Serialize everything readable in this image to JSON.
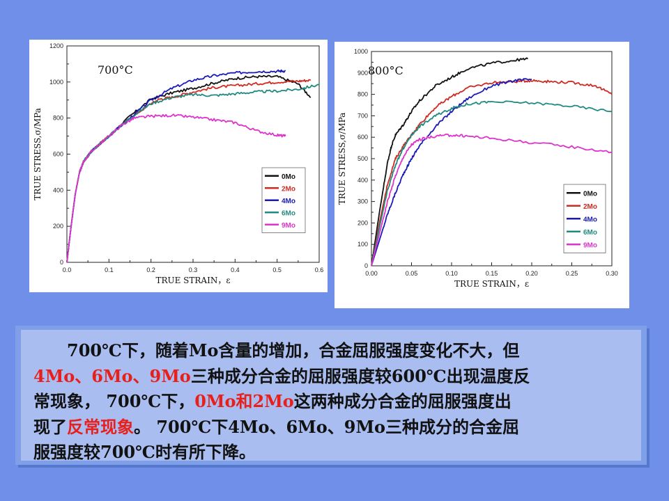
{
  "charts_style": {
    "axis_color": "#222222",
    "frame_color": "#888888"
  },
  "chart_data": [
    {
      "type": "line",
      "temperature_label": "700°C",
      "xlabel": "TRUE STRAIN，ε",
      "ylabel": "TRUE STRESS,σ/MPa",
      "xlim": [
        0,
        0.6
      ],
      "ylim": [
        0,
        1200
      ],
      "x_ticks": [
        0.0,
        0.1,
        0.2,
        0.3,
        0.4,
        0.5,
        0.6
      ],
      "x_tick_labels": [
        "0.0",
        "0.1",
        "0.2",
        "0.3",
        "0.4",
        "0.5",
        "0.6"
      ],
      "y_ticks": [
        0,
        200,
        400,
        600,
        800,
        1000,
        1200
      ],
      "y_tick_labels": [
        "0",
        "200",
        "400",
        "600",
        "800",
        "1000",
        "1200"
      ],
      "legend_position": "right-bottom",
      "series": [
        {
          "name": "0Mo",
          "color": "#111111",
          "x": [
            0,
            0.01,
            0.02,
            0.03,
            0.04,
            0.06,
            0.1,
            0.15,
            0.2,
            0.25,
            0.3,
            0.35,
            0.4,
            0.45,
            0.5,
            0.55,
            0.58
          ],
          "y": [
            0,
            200,
            380,
            500,
            560,
            620,
            700,
            810,
            905,
            940,
            965,
            995,
            1020,
            1030,
            1030,
            990,
            915
          ]
        },
        {
          "name": "2Mo",
          "color": "#d02a22",
          "x": [
            0,
            0.01,
            0.02,
            0.03,
            0.04,
            0.06,
            0.1,
            0.15,
            0.2,
            0.22,
            0.25,
            0.3,
            0.35,
            0.4,
            0.45,
            0.5,
            0.55,
            0.58
          ],
          "y": [
            0,
            200,
            380,
            500,
            560,
            620,
            700,
            800,
            880,
            905,
            915,
            945,
            970,
            980,
            990,
            1000,
            1005,
            1010
          ]
        },
        {
          "name": "4Mo",
          "color": "#1a1ab8",
          "x": [
            0,
            0.01,
            0.02,
            0.03,
            0.04,
            0.06,
            0.1,
            0.15,
            0.2,
            0.25,
            0.3,
            0.35,
            0.4,
            0.45,
            0.5,
            0.52
          ],
          "y": [
            0,
            200,
            380,
            500,
            560,
            620,
            700,
            800,
            900,
            965,
            1010,
            1035,
            1050,
            1058,
            1060,
            1062
          ]
        },
        {
          "name": "6Mo",
          "color": "#1f8a80",
          "x": [
            0,
            0.01,
            0.02,
            0.03,
            0.04,
            0.06,
            0.1,
            0.15,
            0.2,
            0.25,
            0.3,
            0.35,
            0.4,
            0.45,
            0.5,
            0.55,
            0.6
          ],
          "y": [
            0,
            200,
            380,
            500,
            560,
            620,
            700,
            800,
            880,
            915,
            930,
            925,
            935,
            945,
            950,
            960,
            985
          ]
        },
        {
          "name": "9Mo",
          "color": "#dd33cc",
          "x": [
            0,
            0.01,
            0.02,
            0.03,
            0.04,
            0.06,
            0.1,
            0.13,
            0.16,
            0.2,
            0.25,
            0.3,
            0.35,
            0.4,
            0.45,
            0.5,
            0.52
          ],
          "y": [
            0,
            200,
            380,
            500,
            560,
            620,
            700,
            760,
            800,
            810,
            815,
            805,
            790,
            775,
            730,
            705,
            700
          ]
        }
      ]
    },
    {
      "type": "line",
      "temperature_label": "800°C",
      "xlabel": "TRUE STRAIN，ε",
      "ylabel": "TRUE STRESS,σ/MPa",
      "xlim": [
        0,
        0.3
      ],
      "ylim": [
        0,
        1000
      ],
      "x_ticks": [
        0.0,
        0.05,
        0.1,
        0.15,
        0.2,
        0.25,
        0.3
      ],
      "x_tick_labels": [
        "0.00",
        "0.05",
        "0.10",
        "0.15",
        "0.20",
        "0.25",
        "0.30"
      ],
      "y_ticks": [
        0,
        100,
        200,
        300,
        400,
        500,
        600,
        700,
        800,
        900,
        1000
      ],
      "y_tick_labels": [
        "0",
        "100",
        "200",
        "300",
        "400",
        "500",
        "600",
        "700",
        "800",
        "900",
        "1000"
      ],
      "legend_position": "right-bottom",
      "series": [
        {
          "name": "0Mo",
          "color": "#111111",
          "x": [
            0,
            0.01,
            0.02,
            0.025,
            0.03,
            0.04,
            0.05,
            0.06,
            0.08,
            0.1,
            0.12,
            0.15,
            0.18,
            0.195
          ],
          "y": [
            0,
            250,
            480,
            560,
            610,
            660,
            720,
            770,
            840,
            880,
            920,
            945,
            960,
            965
          ]
        },
        {
          "name": "2Mo",
          "color": "#cc2a22",
          "x": [
            0,
            0.01,
            0.02,
            0.03,
            0.04,
            0.05,
            0.06,
            0.08,
            0.1,
            0.12,
            0.15,
            0.18,
            0.2,
            0.22,
            0.25,
            0.28,
            0.3
          ],
          "y": [
            0,
            200,
            380,
            500,
            560,
            610,
            660,
            740,
            790,
            830,
            855,
            860,
            865,
            860,
            855,
            840,
            800
          ]
        },
        {
          "name": "4Mo",
          "color": "#1a1ab8",
          "x": [
            0,
            0.01,
            0.02,
            0.03,
            0.04,
            0.05,
            0.06,
            0.08,
            0.1,
            0.12,
            0.15,
            0.18,
            0.2
          ],
          "y": [
            0,
            120,
            240,
            340,
            430,
            500,
            560,
            650,
            720,
            780,
            840,
            865,
            870
          ]
        },
        {
          "name": "6Mo",
          "color": "#1f8a80",
          "x": [
            0,
            0.01,
            0.02,
            0.03,
            0.04,
            0.05,
            0.06,
            0.08,
            0.1,
            0.12,
            0.15,
            0.2,
            0.25,
            0.3
          ],
          "y": [
            0,
            180,
            350,
            470,
            550,
            610,
            650,
            700,
            735,
            755,
            765,
            760,
            745,
            720
          ]
        },
        {
          "name": "9Mo",
          "color": "#dd33cc",
          "x": [
            0,
            0.01,
            0.02,
            0.03,
            0.04,
            0.05,
            0.06,
            0.08,
            0.1,
            0.12,
            0.15,
            0.2,
            0.25,
            0.3
          ],
          "y": [
            0,
            150,
            300,
            420,
            510,
            565,
            590,
            605,
            610,
            605,
            595,
            575,
            555,
            530
          ]
        }
      ]
    }
  ],
  "text": {
    "p1": "700℃下，随着Mo含量的增加，合金屈服强度变化不大，但",
    "p2_red": "4Mo、6Mo、9Mo",
    "p2": "三种成分合金的屈服强度较600℃出现温度反",
    "p3": "常现象， 700℃下，",
    "p3_red": "0Mo和2Mo",
    "p3b": "这两种成分合金的屈服强度出",
    "p4": "现了",
    "p4_red": "反常现象",
    "p4b": "。 700℃下4Mo、6Mo、9Mo三种成分的合金屈",
    "p5": "服强度较700℃时有所下降。"
  }
}
